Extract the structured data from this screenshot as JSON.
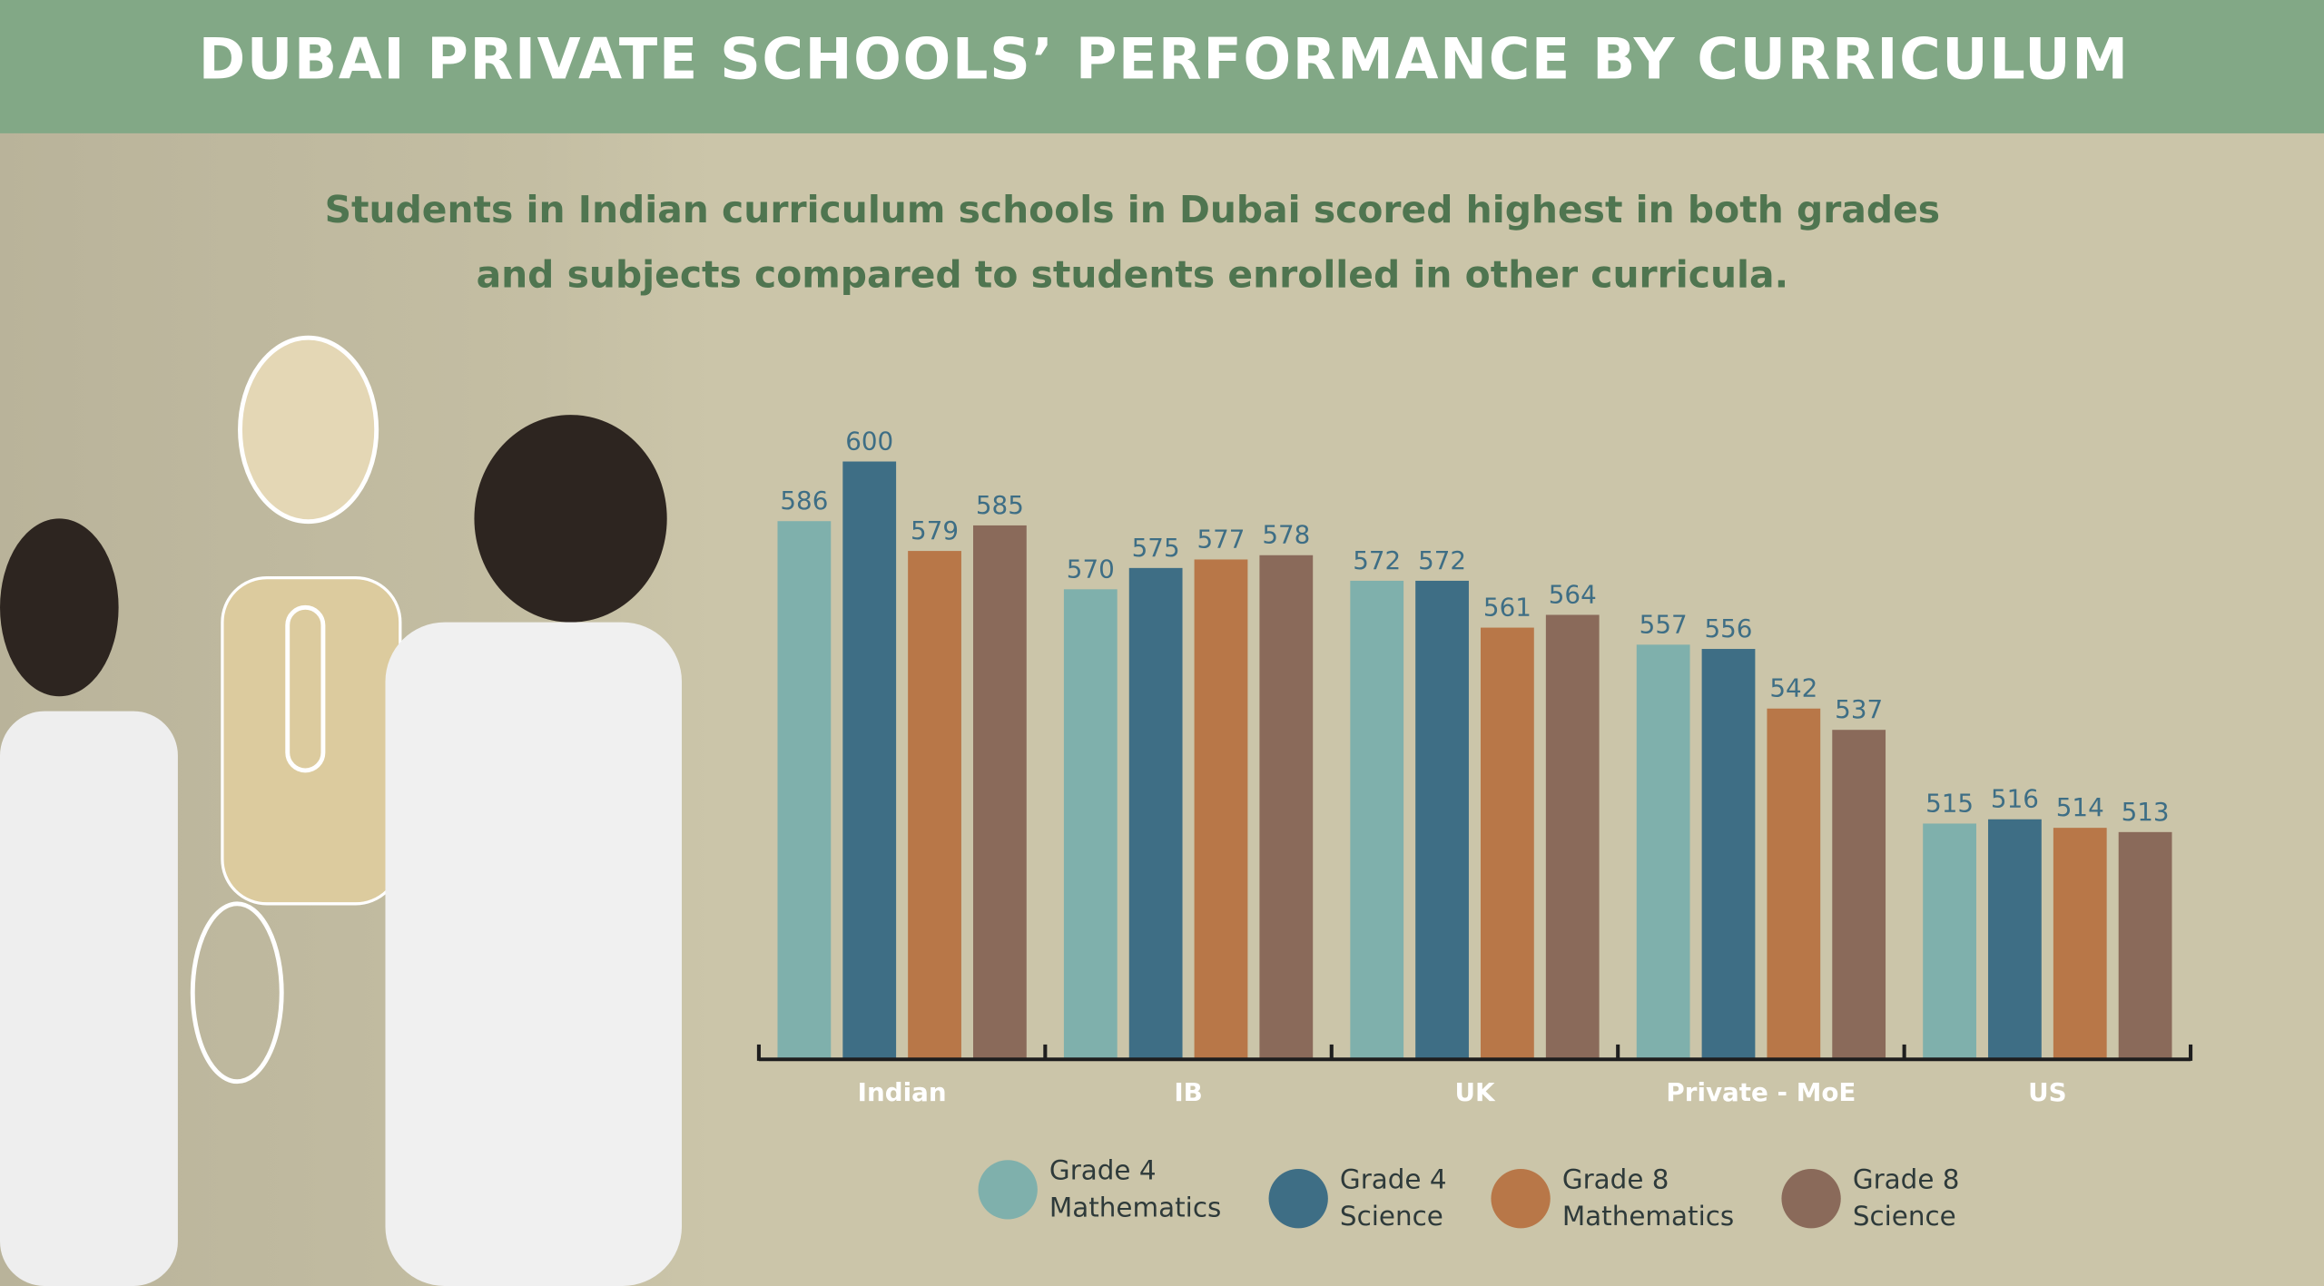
{
  "chart_data": {
    "type": "bar",
    "title": "DUBAI PRIVATE SCHOOLS’ PERFORMANCE BY CURRICULUM",
    "subtitle": "Students in Indian curriculum schools in Dubai scored highest in both grades and subjects compared to students enrolled in other curricula.",
    "categories": [
      "Indian",
      "IB",
      "UK",
      "Private - MoE",
      "US"
    ],
    "series": [
      {
        "name": "Grade 4 Mathematics",
        "color": "#7fb0ac",
        "values": [
          586,
          570,
          572,
          557,
          515
        ]
      },
      {
        "name": "Grade 4 Science",
        "color": "#3e6e85",
        "values": [
          600,
          575,
          572,
          556,
          516
        ]
      },
      {
        "name": "Grade 8 Mathematics",
        "color": "#b87748",
        "values": [
          579,
          577,
          561,
          542,
          514
        ]
      },
      {
        "name": "Grade 8 Science",
        "color": "#8a6a5a",
        "values": [
          585,
          578,
          564,
          537,
          513
        ]
      }
    ],
    "ylim": [
      460,
      620
    ]
  }
}
